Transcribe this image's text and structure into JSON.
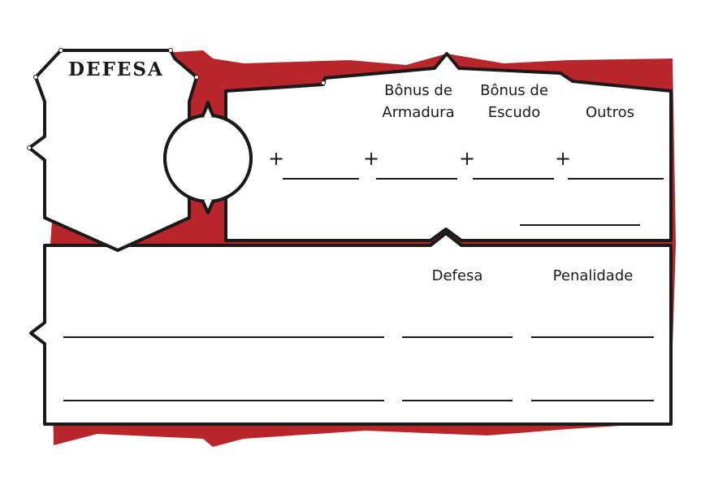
{
  "title": "DEFESA",
  "colors": {
    "accent_red": "#b8262b",
    "ink": "#1a1a1a",
    "paper": "#ffffff"
  },
  "top_panel": {
    "col_armor": {
      "line1": "Bônus de",
      "line2": "Armadura"
    },
    "col_shield": {
      "line1": "Bônus de",
      "line2": "Escudo"
    },
    "col_other": {
      "label": "Outros"
    },
    "plus_sign": "+"
  },
  "bottom_panel": {
    "col_defense": "Defesa",
    "col_penalty": "Penalidade"
  }
}
